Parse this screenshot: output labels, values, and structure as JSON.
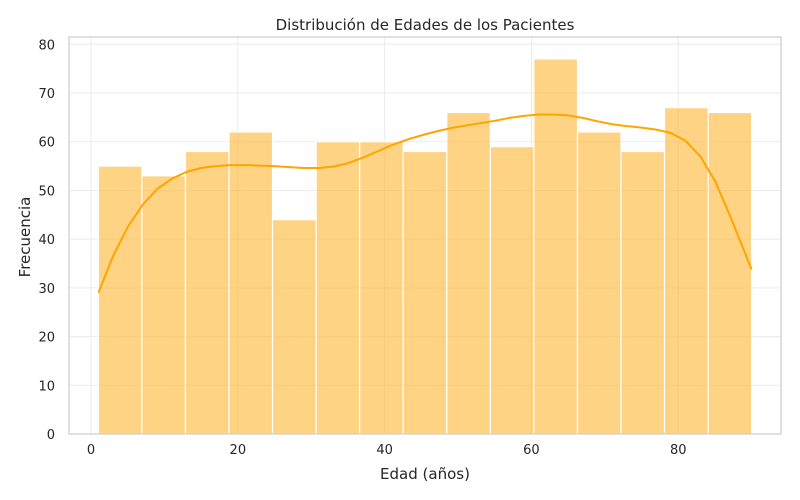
{
  "chart_data": {
    "type": "bar",
    "title": "Distribución de Edades de los Pacientes",
    "xlabel": "Edad (años)",
    "ylabel": "Frecuencia",
    "xlim": [
      -3,
      94
    ],
    "ylim": [
      0,
      81.5
    ],
    "xticks": [
      0,
      20,
      40,
      60,
      80
    ],
    "yticks": [
      0,
      10,
      20,
      30,
      40,
      50,
      60,
      70,
      80
    ],
    "bins": [
      [
        1.0,
        6.93
      ],
      [
        6.93,
        12.87
      ],
      [
        12.87,
        18.8
      ],
      [
        18.8,
        24.73
      ],
      [
        24.73,
        30.67
      ],
      [
        30.67,
        36.6
      ],
      [
        36.6,
        42.53
      ],
      [
        42.53,
        48.47
      ],
      [
        48.47,
        54.4
      ],
      [
        54.4,
        60.33
      ],
      [
        60.33,
        66.27
      ],
      [
        66.27,
        72.2
      ],
      [
        72.2,
        78.13
      ],
      [
        78.13,
        84.07
      ],
      [
        84.07,
        90.0
      ]
    ],
    "values": [
      55,
      53,
      58,
      62,
      44,
      60,
      60,
      58,
      66,
      59,
      77,
      62,
      58,
      67,
      66
    ],
    "kde": {
      "x": [
        1,
        3,
        5,
        7,
        9,
        11,
        13,
        15,
        17,
        19,
        21,
        23,
        25,
        27,
        29,
        31,
        33,
        35,
        37,
        39,
        41,
        43,
        45,
        47,
        49,
        51,
        53,
        55,
        57,
        59,
        61,
        63,
        65,
        67,
        69,
        71,
        73,
        75,
        77,
        79,
        81,
        83,
        85,
        87,
        89,
        90
      ],
      "y": [
        29,
        36.5,
        42.5,
        47,
        50.3,
        52.4,
        53.8,
        54.6,
        55.0,
        55.2,
        55.2,
        55.1,
        55.0,
        54.8,
        54.6,
        54.6,
        54.9,
        55.6,
        56.7,
        58.0,
        59.3,
        60.4,
        61.3,
        62.1,
        62.8,
        63.3,
        63.8,
        64.3,
        64.9,
        65.3,
        65.6,
        65.6,
        65.4,
        64.9,
        64.2,
        63.6,
        63.2,
        62.9,
        62.5,
        61.8,
        60.2,
        57,
        52,
        45,
        37.5,
        33.8
      ]
    },
    "grid": true,
    "colors": {
      "bar": "#fdb631",
      "bar_opacity": 0.6,
      "kde": "#ffa500"
    }
  }
}
